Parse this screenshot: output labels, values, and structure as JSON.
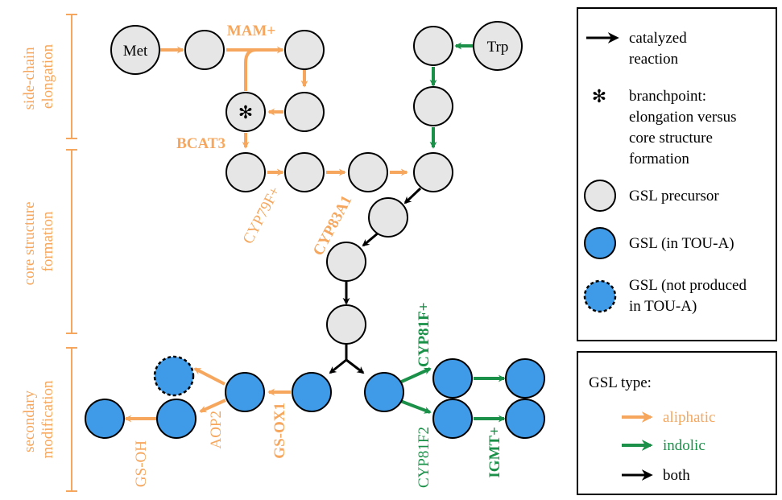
{
  "colors": {
    "aliphatic": "#f6a75d",
    "indolic": "#1a9048",
    "both": "#000000",
    "precursor_fill": "#e6e6e6",
    "gsl_fill": "#3f9ae8"
  },
  "stages": {
    "elongation": "side-chain elongation",
    "elongation_lines": [
      "side-chain",
      "elongation"
    ],
    "core_lines": [
      "core structure",
      "formation"
    ],
    "secondary_lines": [
      "secondary",
      "modification"
    ]
  },
  "nodes": {
    "met": "Met",
    "trp": "Trp",
    "branchpoint_symbol": "✻"
  },
  "enzymes": {
    "mam": "MAM+",
    "bcat3": "BCAT3",
    "cyp79f": "CYP79F+",
    "cyp83a1": "CYP83A1",
    "cyp81f_plus": "CYP81F+",
    "cyp81f2": "CYP81F2",
    "igmt": "IGMT+",
    "gsox1": "GS-OX1",
    "aop2": "AOP2",
    "gsoh": "GS-OH"
  },
  "legend": {
    "catalyzed": [
      "catalyzed",
      "reaction"
    ],
    "branchpoint_symbol": "✻",
    "branchpoint": [
      "branchpoint:",
      "elongation versus",
      "core structure",
      "formation"
    ],
    "precursor": "GSL precursor",
    "gsl": "GSL (in TOU-A)",
    "gsl_not": [
      "GSL (not produced",
      "in TOU-A)"
    ]
  },
  "type_legend": {
    "title": "GSL type:",
    "aliphatic": "aliphatic",
    "indolic": "indolic",
    "both": "both"
  }
}
